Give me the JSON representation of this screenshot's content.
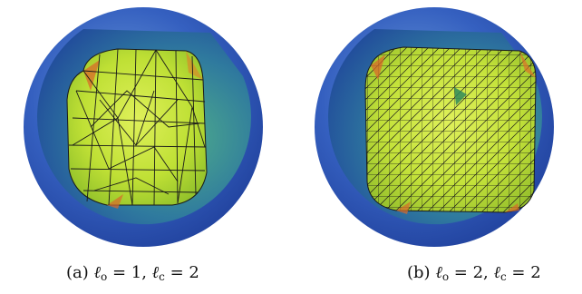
{
  "figures": [
    {
      "caption": {
        "label": "(a)",
        "ell": "ℓ",
        "o_sub": "o",
        "o_eq": " = 1, ",
        "c_sub": "c",
        "c_eq": " = 2"
      },
      "mesh_density": "coarse"
    },
    {
      "caption": {
        "label": "(b)",
        "ell": "ℓ",
        "o_sub": "o",
        "o_eq": " = 2, ",
        "c_sub": "c",
        "c_eq": " = 2"
      },
      "mesh_density": "fine"
    }
  ],
  "colors": {
    "shell_outer": "#2f56b8",
    "shell_inner": "#3f8a9a",
    "mesh_surface": "#c9e63a",
    "mesh_edge": "#1a1a1a",
    "mesh_hot": "#d96a2a"
  }
}
